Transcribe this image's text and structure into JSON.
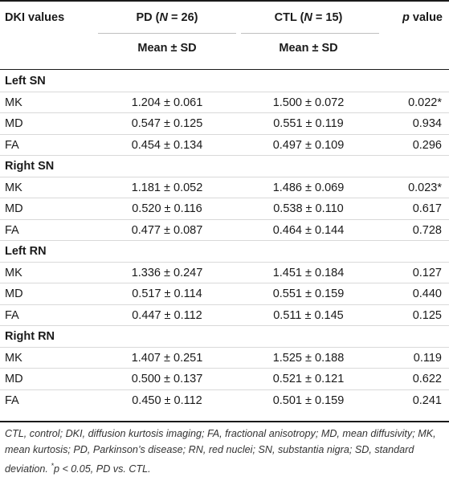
{
  "header": {
    "col1": "DKI values",
    "col2_prefix": "PD (",
    "col2_n": "N",
    "col2_suffix": " = 26)",
    "col3_prefix": "CTL (",
    "col3_n": "N",
    "col3_suffix": " = 15)",
    "col4_p": "p",
    "col4_suffix": " value",
    "sub2": "Mean ± SD",
    "sub3": "Mean ± SD"
  },
  "sections": [
    {
      "title": "Left SN",
      "rows": [
        {
          "label": "MK",
          "pd": "1.204 ± 0.061",
          "ctl": "1.500 ± 0.072",
          "p": "0.022*"
        },
        {
          "label": "MD",
          "pd": "0.547 ± 0.125",
          "ctl": "0.551 ± 0.119",
          "p": "0.934"
        },
        {
          "label": "FA",
          "pd": "0.454 ± 0.134",
          "ctl": "0.497 ± 0.109",
          "p": "0.296"
        }
      ]
    },
    {
      "title": "Right SN",
      "rows": [
        {
          "label": "MK",
          "pd": "1.181 ± 0.052",
          "ctl": "1.486 ± 0.069",
          "p": "0.023*"
        },
        {
          "label": "MD",
          "pd": "0.520 ± 0.116",
          "ctl": "0.538 ± 0.110",
          "p": "0.617"
        },
        {
          "label": "FA",
          "pd": "0.477 ± 0.087",
          "ctl": "0.464 ± 0.144",
          "p": "0.728"
        }
      ]
    },
    {
      "title": "Left RN",
      "rows": [
        {
          "label": "MK",
          "pd": "1.336 ± 0.247",
          "ctl": "1.451 ± 0.184",
          "p": "0.127"
        },
        {
          "label": "MD",
          "pd": "0.517 ± 0.114",
          "ctl": "0.551 ± 0.159",
          "p": "0.440"
        },
        {
          "label": "FA",
          "pd": "0.447 ± 0.112",
          "ctl": "0.511 ± 0.145",
          "p": "0.125"
        }
      ]
    },
    {
      "title": "Right RN",
      "rows": [
        {
          "label": "MK",
          "pd": "1.407 ± 0.251",
          "ctl": "1.525 ± 0.188",
          "p": "0.119"
        },
        {
          "label": "MD",
          "pd": "0.500 ± 0.137",
          "ctl": "0.521 ± 0.121",
          "p": "0.622"
        },
        {
          "label": "FA",
          "pd": "0.450 ± 0.112",
          "ctl": "0.501 ± 0.159",
          "p": "0.241"
        }
      ]
    }
  ],
  "footnote": {
    "text": "CTL, control; DKI, diffusion kurtosis imaging; FA, fractional anisotropy; MD, mean diffusivity; MK, mean kurtosis; PD, Parkinson’s disease; RN, red nuclei; SN, substantia nigra; SD, standard deviation. ",
    "star": "*",
    "p_text": "p < 0.05, PD vs. CTL."
  }
}
